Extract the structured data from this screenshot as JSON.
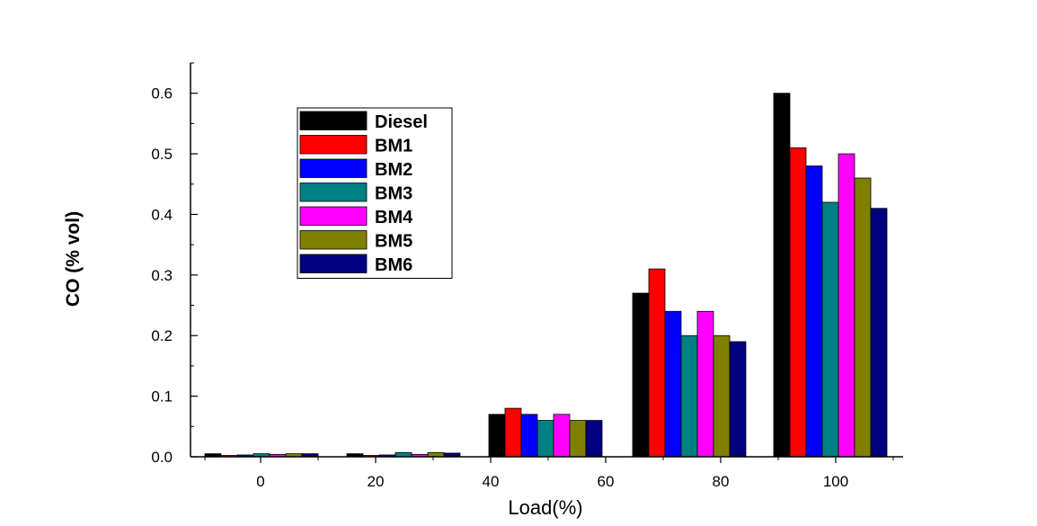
{
  "chart_data": {
    "type": "bar",
    "title": "",
    "xlabel": "Load(%)",
    "ylabel": "CO  (% vol)",
    "x_ticks": [
      "0",
      "20",
      "40",
      "60",
      "80",
      "100"
    ],
    "y_ticks": [
      "0.0",
      "0.1",
      "0.2",
      "0.3",
      "0.4",
      "0.5",
      "0.6"
    ],
    "ylim": [
      0,
      0.65
    ],
    "grid": false,
    "legend_position": "top-left",
    "categories": [
      "0",
      "20",
      "40",
      "80",
      "100"
    ],
    "series": [
      {
        "name": "Diesel",
        "color": "#000000",
        "values": [
          0.005,
          0.005,
          0.07,
          0.27,
          0.6
        ]
      },
      {
        "name": "BM1",
        "color": "#ff0000",
        "values": [
          0.002,
          0.002,
          0.08,
          0.31,
          0.51
        ]
      },
      {
        "name": "BM2",
        "color": "#0000ff",
        "values": [
          0.003,
          0.003,
          0.07,
          0.24,
          0.48
        ]
      },
      {
        "name": "BM3",
        "color": "#008080",
        "values": [
          0.005,
          0.007,
          0.06,
          0.2,
          0.42
        ]
      },
      {
        "name": "BM4",
        "color": "#ff00ff",
        "values": [
          0.004,
          0.004,
          0.07,
          0.24,
          0.5
        ]
      },
      {
        "name": "BM5",
        "color": "#808000",
        "values": [
          0.005,
          0.007,
          0.06,
          0.2,
          0.46
        ]
      },
      {
        "name": "BM6",
        "color": "#000080",
        "values": [
          0.005,
          0.006,
          0.06,
          0.19,
          0.41
        ]
      }
    ]
  }
}
